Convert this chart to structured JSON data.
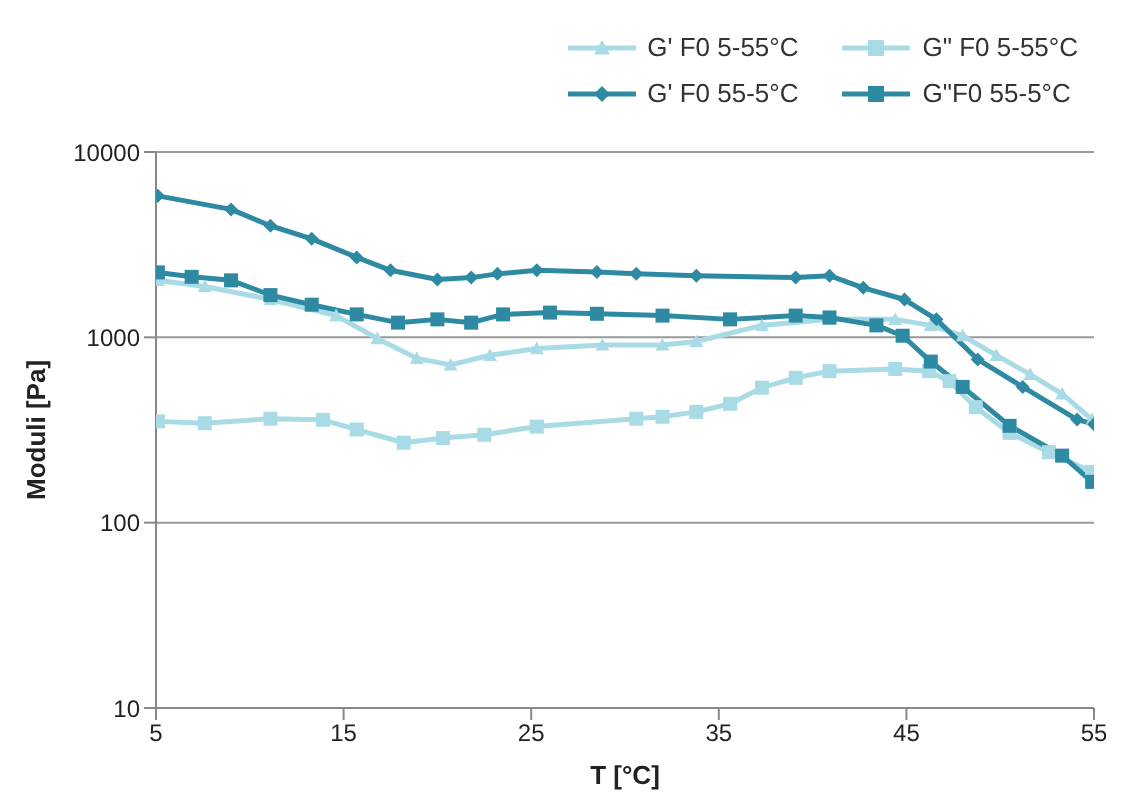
{
  "chart_data": {
    "type": "line",
    "xlabel": "T [°C]",
    "ylabel": "Moduli [Pa]",
    "log": "y",
    "grid": "y",
    "legend": "top right",
    "xlim": [
      5,
      55
    ],
    "xticks": [
      5,
      15,
      25,
      35,
      45,
      55
    ],
    "ylim": [
      10,
      10000
    ],
    "yticks": [
      10,
      100,
      1000,
      10000
    ],
    "series": [
      {
        "name": "G' F0 5-55°C",
        "color": "#a9dbe6",
        "marker": "triangle",
        "x": [
          5.1,
          7.6,
          11.1,
          14.6,
          16.8,
          18.9,
          20.7,
          22.8,
          25.3,
          28.8,
          32,
          33.8,
          37.3,
          40.9,
          44.4,
          46.3,
          48,
          49.8,
          51.6,
          53.3,
          54.9
        ],
        "values": [
          2030,
          1880,
          1600,
          1310,
          985,
          770,
          710,
          800,
          870,
          910,
          910,
          950,
          1160,
          1250,
          1250,
          1160,
          1020,
          800,
          630,
          495,
          360
        ]
      },
      {
        "name": "G\" F0 5-55°C",
        "color": "#a9dbe6",
        "marker": "square",
        "x": [
          5.1,
          7.6,
          11.1,
          13.9,
          15.7,
          18.2,
          20.3,
          22.5,
          25.3,
          30.6,
          32,
          33.8,
          35.6,
          37.3,
          39.1,
          40.9,
          44.4,
          46.2,
          47.3,
          48.7,
          50.5,
          52.6,
          54.9
        ],
        "values": [
          352,
          344,
          364,
          359,
          318,
          270,
          286,
          298,
          330,
          364,
          373,
          396,
          438,
          535,
          605,
          657,
          675,
          657,
          580,
          420,
          305,
          240,
          188
        ]
      },
      {
        "name": "G' F0 55-5°C",
        "color": "#2e8aa3",
        "marker": "diamond",
        "x": [
          5.1,
          9,
          11.1,
          13.3,
          15.7,
          17.5,
          20,
          21.8,
          23.2,
          25.3,
          28.5,
          30.6,
          33.8,
          39.1,
          40.9,
          42.7,
          44.9,
          46.6,
          48.8,
          51.2,
          54.1,
          55
        ],
        "values": [
          5800,
          4900,
          4000,
          3400,
          2700,
          2300,
          2050,
          2100,
          2200,
          2300,
          2250,
          2200,
          2150,
          2100,
          2150,
          1850,
          1600,
          1250,
          760,
          540,
          360,
          340
        ]
      },
      {
        "name": "G\"F0 55-5°C",
        "color": "#2e8aa3",
        "marker": "square",
        "x": [
          5.1,
          6.9,
          9,
          11.1,
          13.3,
          15.7,
          17.9,
          20,
          21.8,
          23.5,
          26,
          28.5,
          32,
          35.6,
          39.1,
          40.9,
          43.4,
          44.8,
          46.3,
          48,
          50.5,
          53.3,
          54.9
        ],
        "values": [
          2240,
          2120,
          2030,
          1690,
          1500,
          1330,
          1200,
          1250,
          1200,
          1330,
          1360,
          1340,
          1310,
          1250,
          1310,
          1280,
          1160,
          1020,
          740,
          540,
          333,
          230,
          166
        ]
      }
    ]
  }
}
